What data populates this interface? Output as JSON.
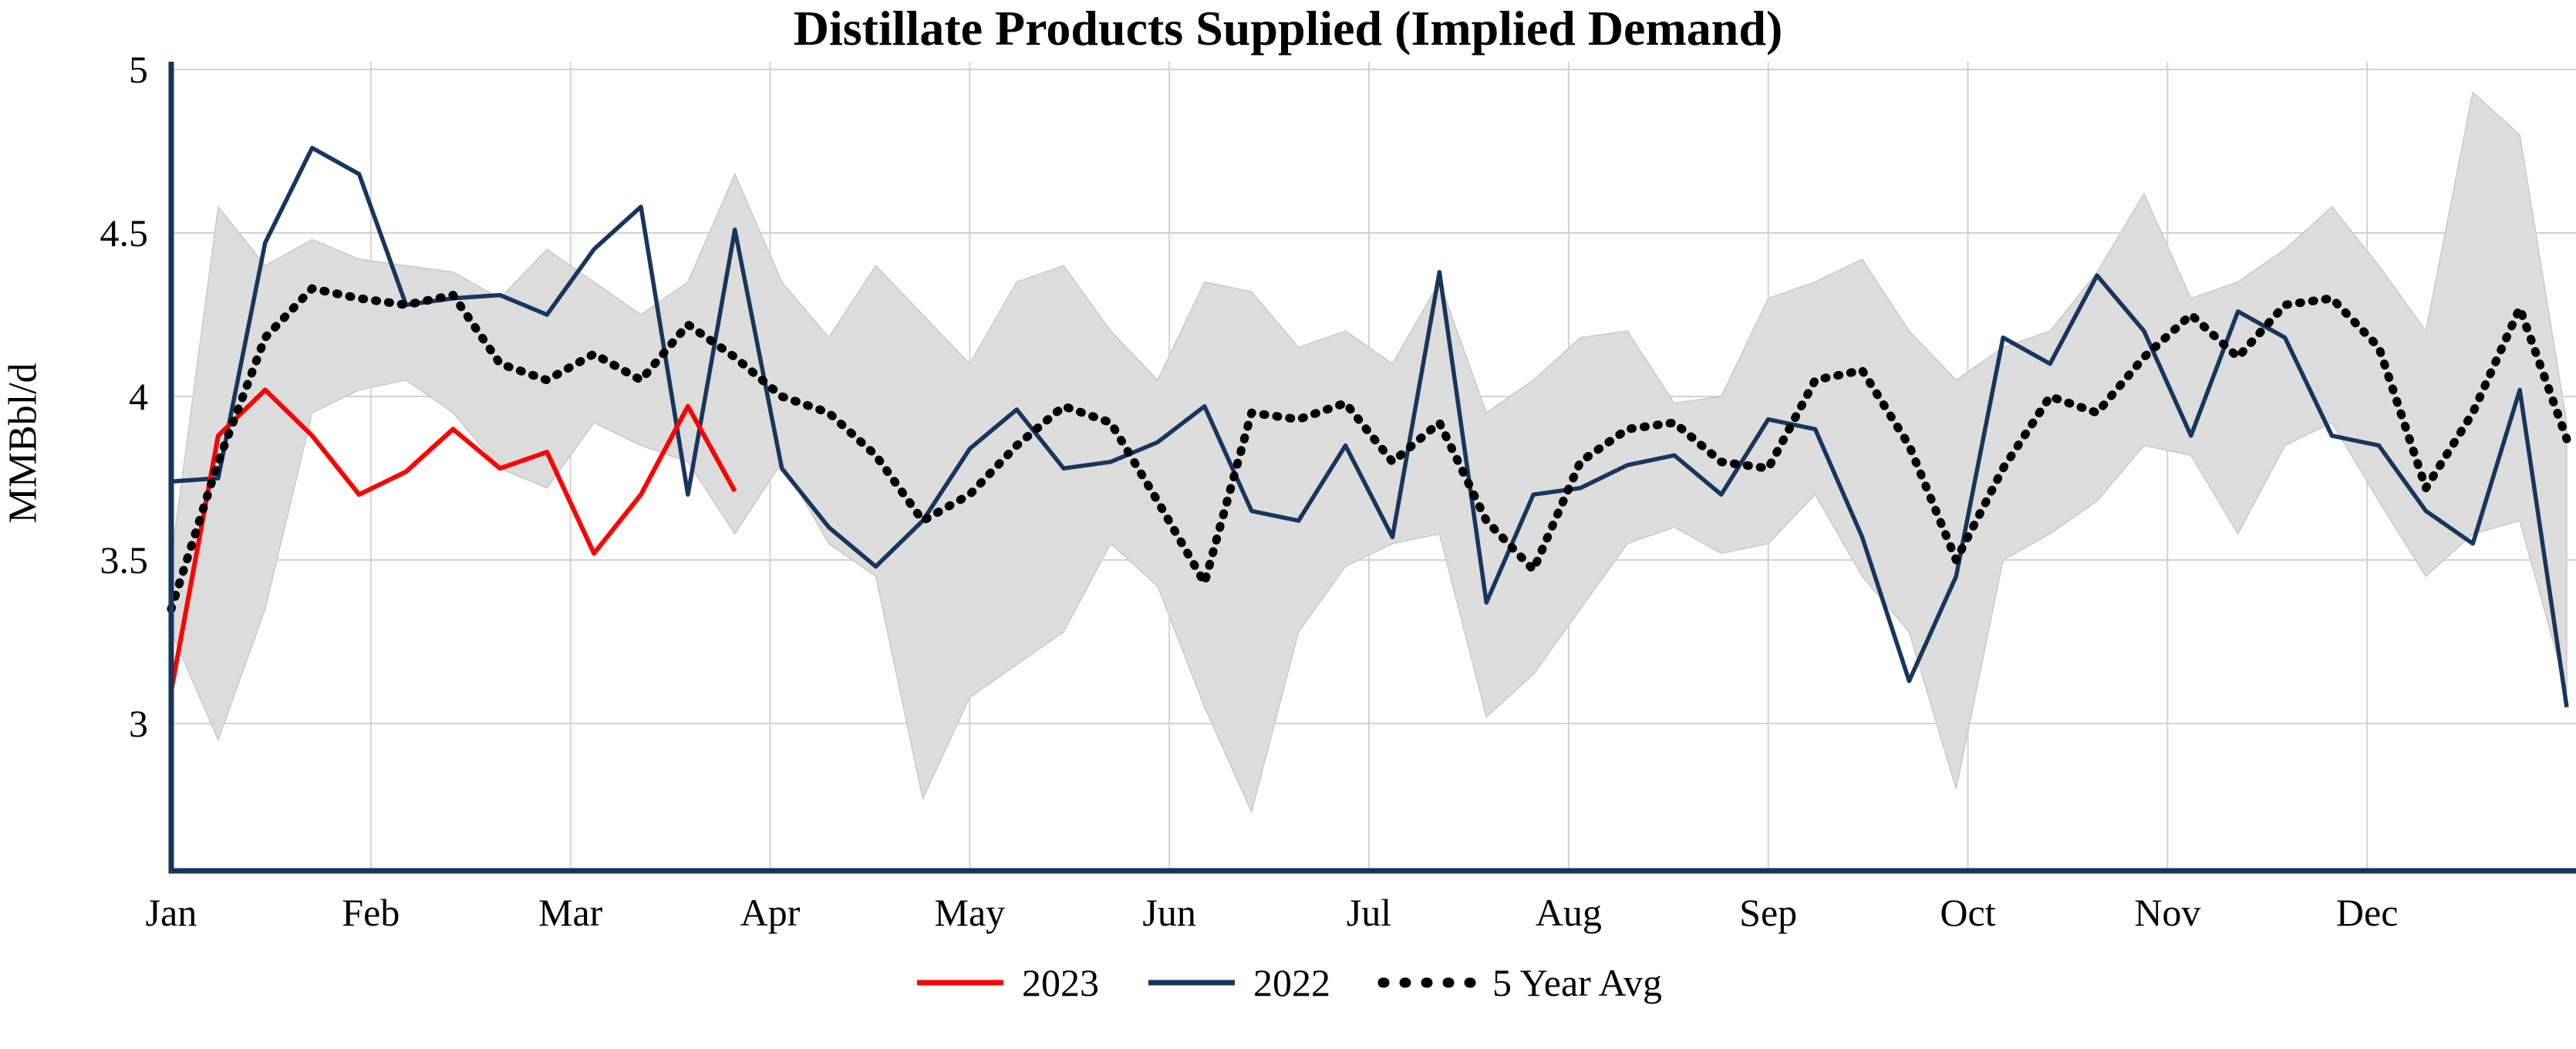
{
  "chart_data": {
    "type": "line",
    "title": "Distillate Products Supplied (Implied Demand)",
    "ylabel": "MMBbl/d",
    "x_axis": {
      "unit": "weekly",
      "tick_labels": [
        "Jan",
        "Feb",
        "Mar",
        "Apr",
        "May",
        "Jun",
        "Jul",
        "Aug",
        "Sep",
        "Oct",
        "Nov",
        "Dec"
      ]
    },
    "y_axis": {
      "ticks": [
        3,
        3.5,
        4,
        4.5,
        5
      ],
      "range": [
        2.55,
        5
      ]
    },
    "grid": true,
    "legend_position": "bottom",
    "colors": {
      "axis": "#17365d",
      "grid": "#d2d2d2",
      "band": "#dcdcdc",
      "band_edge": "#c9c9c9",
      "series_2023": "#ff0000",
      "series_2022": "#17365d",
      "series_avg": "#000000"
    },
    "band_5yr_range": {
      "upper": [
        3.5,
        4.58,
        4.4,
        4.48,
        4.42,
        4.4,
        4.38,
        4.3,
        4.45,
        4.35,
        4.25,
        4.35,
        4.68,
        4.35,
        4.18,
        4.4,
        4.25,
        4.1,
        4.35,
        4.4,
        4.2,
        4.05,
        4.35,
        4.32,
        4.15,
        4.2,
        4.1,
        4.35,
        3.95,
        4.05,
        4.18,
        4.2,
        3.98,
        4.0,
        4.3,
        4.35,
        4.42,
        4.2,
        4.05,
        4.15,
        4.2,
        4.38,
        4.62,
        4.3,
        4.35,
        4.45,
        4.58,
        4.4,
        4.2,
        4.93,
        4.8,
        3.92
      ],
      "lower": [
        3.28,
        2.95,
        3.35,
        3.95,
        4.02,
        4.05,
        3.95,
        3.78,
        3.72,
        3.92,
        3.85,
        3.8,
        3.58,
        3.8,
        3.55,
        3.45,
        2.77,
        3.08,
        3.18,
        3.28,
        3.55,
        3.42,
        3.05,
        2.73,
        3.28,
        3.48,
        3.55,
        3.58,
        3.02,
        3.15,
        3.35,
        3.55,
        3.6,
        3.52,
        3.55,
        3.7,
        3.45,
        3.28,
        2.8,
        3.5,
        3.58,
        3.68,
        3.85,
        3.82,
        3.58,
        3.85,
        3.92,
        3.68,
        3.45,
        3.58,
        3.62,
        3.1
      ]
    },
    "series": [
      {
        "name": "2023",
        "color": "#ff0000",
        "style": "solid",
        "values": [
          3.1,
          3.88,
          4.02,
          3.88,
          3.7,
          3.77,
          3.9,
          3.78,
          3.83,
          3.52,
          3.7,
          3.97,
          3.71
        ]
      },
      {
        "name": "2022",
        "color": "#17365d",
        "style": "solid",
        "values": [
          3.74,
          3.75,
          4.47,
          4.76,
          4.68,
          4.28,
          4.3,
          4.31,
          4.25,
          4.45,
          4.58,
          3.7,
          4.51,
          3.78,
          3.6,
          3.48,
          3.62,
          3.84,
          3.96,
          3.78,
          3.8,
          3.86,
          3.97,
          3.65,
          3.62,
          3.85,
          3.57,
          4.38,
          3.37,
          3.7,
          3.72,
          3.79,
          3.82,
          3.7,
          3.93,
          3.9,
          3.57,
          3.13,
          3.45,
          4.18,
          4.1,
          4.37,
          4.2,
          3.88,
          4.26,
          4.18,
          3.88,
          3.85,
          3.65,
          3.55,
          4.02,
          3.05
        ]
      },
      {
        "name": "5 Year Avg",
        "color": "#000000",
        "style": "dotted",
        "values": [
          3.35,
          3.8,
          4.18,
          4.33,
          4.3,
          4.28,
          4.31,
          4.1,
          4.05,
          4.13,
          4.05,
          4.22,
          4.12,
          4.0,
          3.95,
          3.82,
          3.62,
          3.7,
          3.85,
          3.97,
          3.92,
          3.68,
          3.43,
          3.95,
          3.93,
          3.98,
          3.8,
          3.92,
          3.62,
          3.47,
          3.8,
          3.9,
          3.92,
          3.8,
          3.78,
          4.05,
          4.08,
          3.85,
          3.5,
          3.78,
          4.0,
          3.95,
          4.12,
          4.25,
          4.12,
          4.28,
          4.3,
          4.15,
          3.72,
          3.95,
          4.27,
          3.87
        ]
      }
    ]
  }
}
